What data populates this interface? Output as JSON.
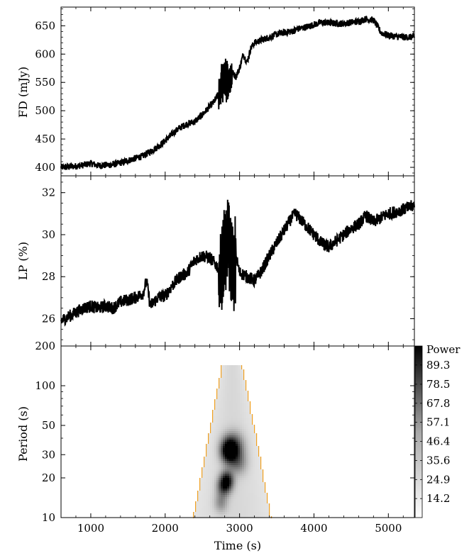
{
  "chart_data": [
    {
      "type": "line",
      "panel": "top",
      "ylabel": "FD (mJy)",
      "xlabel": "",
      "xlim": [
        600,
        5350
      ],
      "ylim": [
        385,
        683
      ],
      "yticks": [
        400,
        450,
        500,
        550,
        600,
        650
      ],
      "series": [
        {
          "noise": 6,
          "x": [
            600,
            700,
            800,
            900,
            1000,
            1100,
            1200,
            1300,
            1400,
            1500,
            1600,
            1700,
            1800,
            1900,
            2000,
            2100,
            2200,
            2300,
            2400,
            2500,
            2600,
            2650,
            2700,
            2750,
            2800,
            2850,
            2900,
            2950,
            3000,
            3050,
            3100,
            3150,
            3200,
            3300,
            3400,
            3500,
            3600,
            3700,
            3800,
            3900,
            4000,
            4100,
            4200,
            4300,
            4400,
            4500,
            4600,
            4700,
            4800,
            4850,
            4900,
            5000,
            5100,
            5200,
            5350
          ],
          "y": [
            400,
            401,
            402,
            404,
            407,
            403,
            404,
            405,
            408,
            412,
            416,
            420,
            428,
            436,
            447,
            460,
            470,
            477,
            481,
            493,
            508,
            515,
            525,
            545,
            560,
            548,
            568,
            560,
            575,
            600,
            585,
            610,
            620,
            625,
            630,
            635,
            638,
            640,
            645,
            648,
            652,
            656,
            655,
            654,
            654,
            656,
            658,
            662,
            660,
            650,
            638,
            633,
            631,
            630,
            630
          ]
        }
      ],
      "spikes": [
        [
          2720,
          2900,
          35
        ]
      ]
    },
    {
      "type": "line",
      "panel": "middle",
      "ylabel": "LP (%)",
      "xlabel": "",
      "xlim": [
        600,
        5350
      ],
      "ylim": [
        24.7,
        32.8
      ],
      "yticks": [
        26,
        28,
        30,
        32
      ],
      "series": [
        {
          "noise": 0.3,
          "x": [
            600,
            700,
            800,
            900,
            1000,
            1100,
            1200,
            1300,
            1400,
            1500,
            1600,
            1700,
            1750,
            1800,
            1900,
            2000,
            2100,
            2200,
            2300,
            2400,
            2500,
            2600,
            2700,
            2750,
            2800,
            2850,
            2900,
            2950,
            3000,
            3100,
            3200,
            3300,
            3400,
            3500,
            3600,
            3700,
            3750,
            3800,
            3900,
            4000,
            4100,
            4200,
            4300,
            4400,
            4500,
            4600,
            4700,
            4800,
            4900,
            5000,
            5100,
            5200,
            5350
          ],
          "y": [
            25.9,
            26.1,
            26.3,
            26.5,
            26.6,
            26.5,
            26.6,
            26.5,
            26.8,
            26.9,
            27.0,
            27.2,
            27.8,
            26.6,
            27.0,
            27.1,
            27.6,
            28.0,
            28.2,
            28.8,
            29.0,
            28.9,
            28.5,
            28.0,
            29.0,
            30.0,
            28.0,
            29.0,
            28.2,
            28.0,
            27.8,
            28.3,
            29.0,
            29.6,
            30.2,
            30.8,
            31.0,
            30.8,
            30.4,
            30.0,
            29.6,
            29.4,
            29.7,
            30.0,
            30.3,
            30.5,
            30.9,
            30.6,
            30.8,
            31.0,
            31.1,
            31.2,
            31.4
          ]
        }
      ],
      "spikes": [
        [
          2720,
          2950,
          2.2
        ]
      ]
    },
    {
      "type": "heatmap",
      "panel": "bottom",
      "xlabel": "Time (s)",
      "ylabel": "Period (s)",
      "xlim": [
        600,
        5350
      ],
      "ylim": [
        10,
        200
      ],
      "yscale": "log",
      "xticks": [
        1000,
        2000,
        3000,
        4000,
        5000
      ],
      "yticks": [
        10,
        20,
        30,
        50,
        100,
        200
      ],
      "colorbar": {
        "label": "Power",
        "ticks": [
          "89.3",
          "78.5",
          "67.8",
          "57.1",
          "46.4",
          "35.6",
          "24.9",
          "14.2"
        ],
        "range": [
          3.5,
          100
        ]
      },
      "contour_color": "#f0a020",
      "blobs": [
        {
          "t": 2850,
          "p": 32,
          "power": 95,
          "sigma_t": 70,
          "sigma_logp": 0.06
        },
        {
          "t": 2920,
          "p": 34,
          "power": 70,
          "sigma_t": 90,
          "sigma_logp": 0.07
        },
        {
          "t": 2830,
          "p": 19,
          "power": 88,
          "sigma_t": 60,
          "sigma_logp": 0.05
        },
        {
          "t": 2780,
          "p": 17,
          "power": 50,
          "sigma_t": 60,
          "sigma_logp": 0.05
        },
        {
          "t": 2980,
          "p": 26,
          "power": 35,
          "sigma_t": 80,
          "sigma_logp": 0.06
        },
        {
          "t": 2750,
          "p": 13,
          "power": 30,
          "sigma_t": 60,
          "sigma_logp": 0.05
        }
      ]
    }
  ]
}
